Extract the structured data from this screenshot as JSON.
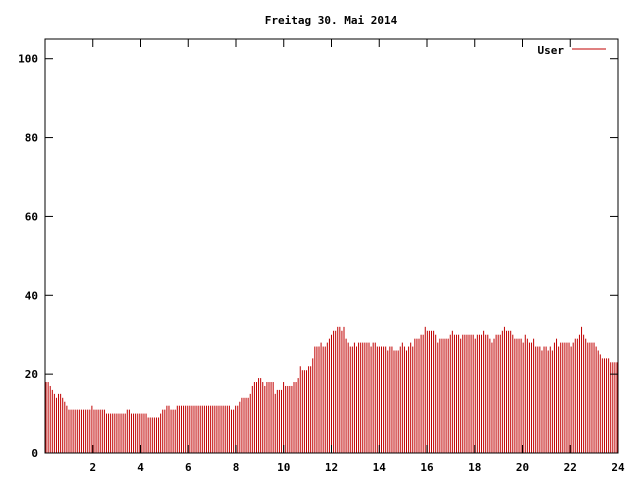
{
  "chart_data": {
    "type": "bar",
    "title": "Freitag 30. Mai 2014",
    "xlabel": "",
    "ylabel": "",
    "xlim": [
      0,
      24
    ],
    "ylim": [
      0,
      105
    ],
    "x_ticks": [
      2,
      4,
      6,
      8,
      10,
      12,
      14,
      16,
      18,
      20,
      22,
      24
    ],
    "x_tick_labels": [
      "2",
      "4",
      "6",
      "8",
      "10",
      "12",
      "14",
      "16",
      "18",
      "20",
      "22",
      "24"
    ],
    "y_ticks": [
      0,
      20,
      40,
      60,
      80,
      100
    ],
    "y_tick_labels": [
      "0",
      "20",
      "40",
      "60",
      "80",
      "100"
    ],
    "grid": false,
    "legend_position": "top-right",
    "series": [
      {
        "name": "User",
        "color": "#c00000",
        "sample_interval_hours": 0.0833,
        "values": [
          18,
          18,
          17,
          16,
          15,
          14,
          15,
          15,
          14,
          13,
          12,
          11,
          11,
          11,
          11,
          11,
          11,
          11,
          11,
          11,
          11,
          11,
          12,
          11,
          11,
          11,
          11,
          11,
          11,
          10,
          10,
          10,
          10,
          10,
          10,
          10,
          10,
          10,
          10,
          11,
          11,
          10,
          10,
          10,
          10,
          10,
          10,
          10,
          10,
          9,
          9,
          9,
          9,
          9,
          9,
          10,
          11,
          11,
          12,
          12,
          11,
          11,
          11,
          12,
          12,
          12,
          12,
          12,
          12,
          12,
          12,
          12,
          12,
          12,
          12,
          12,
          12,
          12,
          12,
          12,
          12,
          12,
          12,
          12,
          12,
          12,
          12,
          12,
          12,
          11,
          11,
          12,
          12,
          13,
          14,
          14,
          14,
          14,
          15,
          17,
          18,
          18,
          19,
          19,
          18,
          17,
          18,
          18,
          18,
          18,
          15,
          16,
          16,
          16,
          18,
          17,
          17,
          17,
          17,
          18,
          18,
          19,
          22,
          21,
          21,
          21,
          22,
          22,
          24,
          27,
          27,
          27,
          28,
          27,
          27,
          28,
          29,
          30,
          31,
          31,
          32,
          32,
          31,
          32,
          29,
          28,
          27,
          27,
          28,
          27,
          28,
          28,
          28,
          28,
          28,
          28,
          27,
          28,
          28,
          27,
          27,
          27,
          27,
          27,
          26,
          27,
          27,
          26,
          26,
          26,
          27,
          28,
          27,
          26,
          27,
          28,
          27,
          29,
          29,
          29,
          30,
          30,
          32,
          31,
          31,
          31,
          31,
          30,
          28,
          29,
          29,
          29,
          29,
          29,
          30,
          31,
          30,
          30,
          30,
          29,
          30,
          30,
          30,
          30,
          30,
          30,
          29,
          30,
          30,
          30,
          31,
          30,
          30,
          29,
          28,
          29,
          30,
          30,
          30,
          31,
          32,
          31,
          31,
          31,
          30,
          29,
          29,
          29,
          29,
          28,
          30,
          29,
          28,
          28,
          29,
          27,
          27,
          27,
          26,
          27,
          27,
          26,
          27,
          26,
          28,
          29,
          27,
          28,
          28,
          28,
          28,
          28,
          27,
          28,
          29,
          29,
          30,
          32,
          30,
          29,
          28,
          28,
          28,
          28,
          27,
          26,
          25,
          24,
          24,
          24,
          24,
          23,
          23,
          23,
          23
        ]
      }
    ]
  }
}
